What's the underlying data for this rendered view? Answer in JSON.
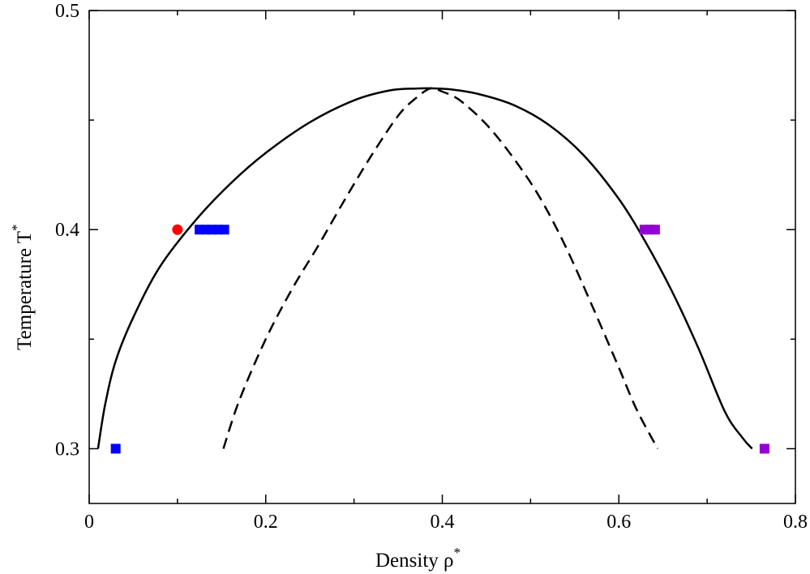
{
  "chart_data": {
    "type": "line",
    "title": "",
    "xlabel": "Density  ρ",
    "xlabel_sup": "*",
    "ylabel": "Temperature T",
    "ylabel_sup": "*",
    "xlim": [
      0,
      0.8
    ],
    "ylim": [
      0.275,
      0.5
    ],
    "grid": false,
    "legend": "none",
    "x_ticks": {
      "major": [
        0,
        0.2,
        0.4,
        0.6,
        0.8
      ],
      "major_labels": [
        "0",
        "0.2",
        "0.4",
        "0.6",
        "0.8"
      ],
      "minor": [
        0.1,
        0.3,
        0.5,
        0.7
      ]
    },
    "y_ticks": {
      "major": [
        0.3,
        0.4,
        0.5
      ],
      "major_labels": [
        "0.3",
        "0.4",
        "0.5"
      ],
      "minor": [
        0.35,
        0.45
      ]
    },
    "critical_point": {
      "rho": 0.387,
      "T": 0.4645
    },
    "series": [
      {
        "style": "solid",
        "color": "#000000",
        "x": [
          0.01,
          0.018,
          0.03,
          0.05,
          0.08,
          0.12,
          0.16,
          0.2,
          0.25,
          0.3,
          0.34,
          0.37,
          0.387,
          0.41,
          0.44,
          0.48,
          0.52,
          0.56,
          0.6,
          0.63,
          0.66,
          0.69,
          0.72,
          0.74,
          0.751
        ],
        "y": [
          0.3,
          0.32,
          0.34,
          0.36,
          0.383,
          0.404,
          0.421,
          0.435,
          0.449,
          0.459,
          0.4635,
          0.4644,
          0.4645,
          0.464,
          0.462,
          0.457,
          0.448,
          0.434,
          0.414,
          0.3945,
          0.372,
          0.346,
          0.317,
          0.305,
          0.3
        ]
      },
      {
        "style": "dashed",
        "color": "#000000",
        "x": [
          0.152,
          0.17,
          0.2,
          0.23,
          0.26,
          0.29,
          0.32,
          0.35,
          0.37,
          0.387,
          0.4,
          0.42,
          0.45,
          0.48,
          0.51,
          0.54,
          0.57,
          0.6,
          0.62,
          0.644
        ],
        "y": [
          0.3,
          0.322,
          0.35,
          0.373,
          0.393,
          0.414,
          0.434,
          0.452,
          0.46,
          0.4645,
          0.463,
          0.459,
          0.448,
          0.433,
          0.415,
          0.392,
          0.365,
          0.337,
          0.318,
          0.3
        ]
      }
    ],
    "markers": [
      {
        "shape": "circle",
        "color": "#ff0000",
        "x": [
          0.1
        ],
        "y": [
          0.4
        ]
      },
      {
        "shape": "square",
        "color": "#0000ff",
        "x": [
          0.03,
          0.125,
          0.132,
          0.139,
          0.146,
          0.153
        ],
        "y": [
          0.3,
          0.4,
          0.4,
          0.4,
          0.4,
          0.4
        ]
      },
      {
        "shape": "square",
        "color": "#9400d3",
        "x": [
          0.629,
          0.635,
          0.641,
          0.765
        ],
        "y": [
          0.4,
          0.4,
          0.4,
          0.3
        ]
      }
    ]
  }
}
